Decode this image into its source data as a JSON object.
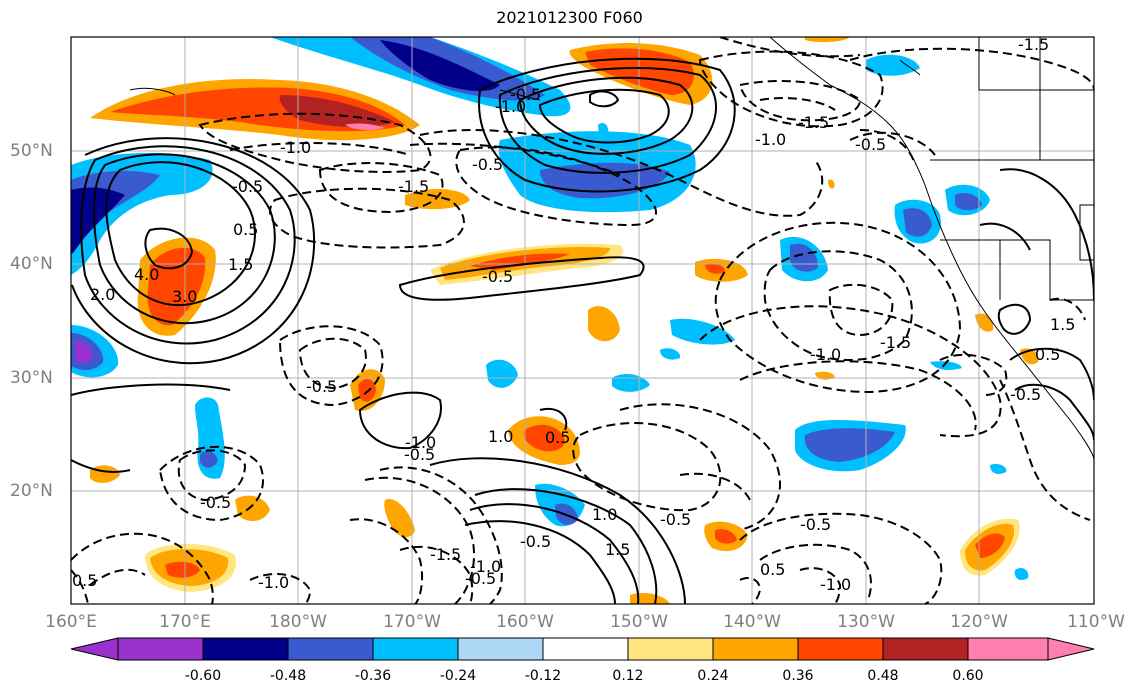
{
  "title": "2021012300 F060",
  "lon_labels": [
    "160°E",
    "170°E",
    "180°W",
    "170°W",
    "160°W",
    "150°W",
    "140°W",
    "130°W",
    "120°W",
    "110°W"
  ],
  "lat_labels": [
    "50°N",
    "40°N",
    "30°N",
    "20°N"
  ],
  "colorbar": {
    "ticks": [
      "-0.60",
      "-0.48",
      "-0.36",
      "-0.24",
      "-0.12",
      "0.12",
      "0.24",
      "0.36",
      "0.48",
      "0.60"
    ],
    "colors": [
      "#9932cc",
      "#00008b",
      "#3a5bd0",
      "#00bfff",
      "#add8f5",
      "#ffffff",
      "#ffe680",
      "#ffa500",
      "#ff4500",
      "#b22222",
      "#ff80b0"
    ]
  },
  "contour_labels": [
    "-1.0",
    "-0.5",
    "-1.5",
    "-0.5",
    "-1.0",
    "-1.5",
    "-0.5",
    "-1.0",
    "-1.5",
    "-0.5",
    "-0.5",
    "-0.5",
    "-1.0",
    "-1.0",
    "-1.5",
    "-1.5",
    "-0.5",
    "-0.5",
    "-1.0",
    "-0.5",
    "-1.0",
    "1.5",
    "-0.5",
    "-0.5",
    "0.5",
    "0.5",
    "-1.0",
    "-0.5",
    "4.0",
    "3.0",
    "2.0",
    "1.5",
    "0.5",
    "0.5",
    "1.0",
    "1.5",
    "1.0",
    "0.5",
    "-0.5"
  ]
}
